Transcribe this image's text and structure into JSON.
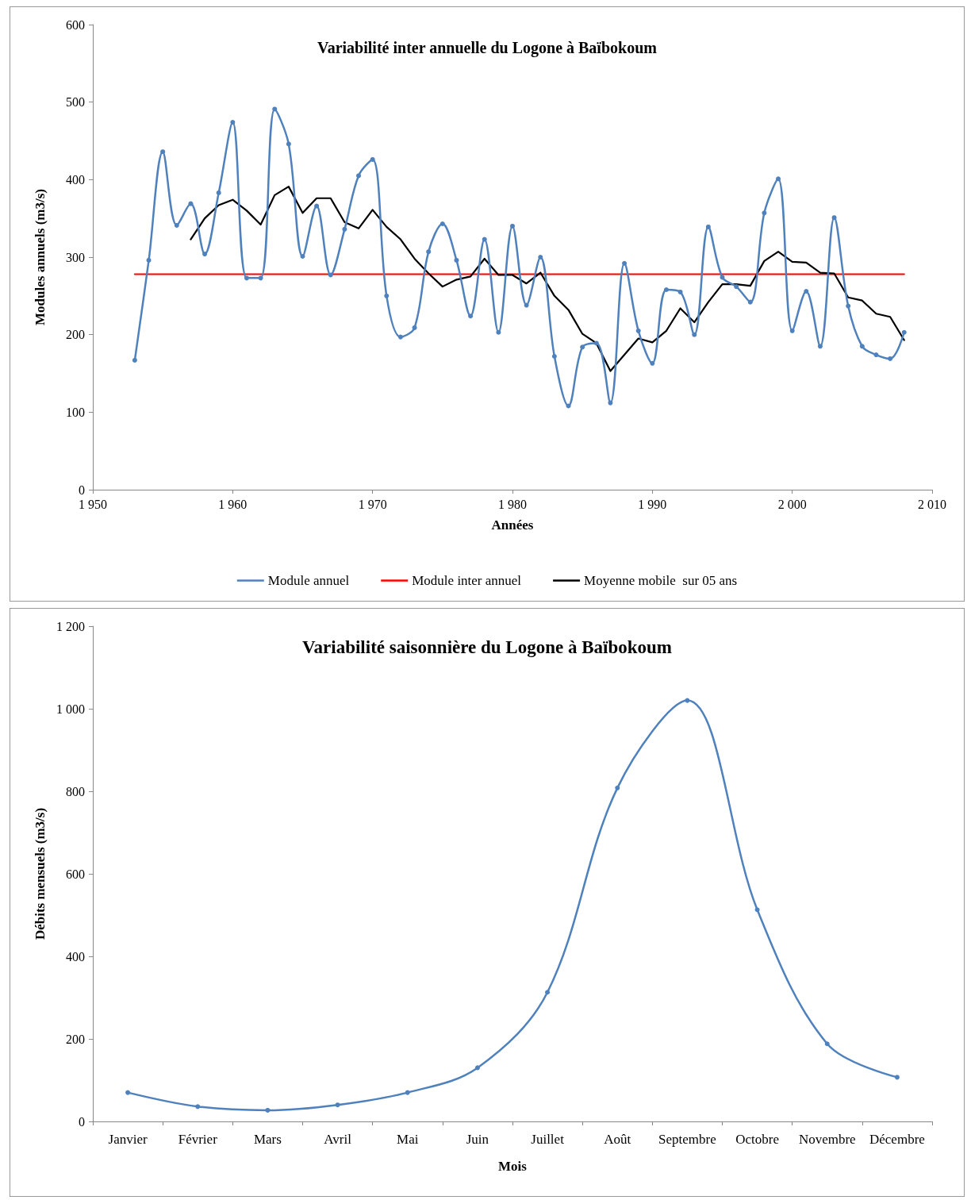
{
  "chart_data": [
    {
      "type": "line",
      "title": "Variabilité inter annuelle du Logone à Baïbokoum",
      "xlabel": "Années",
      "ylabel": "Modules annuels (m3/s)",
      "xlim": [
        1950,
        2010
      ],
      "xticks": [
        {
          "value": 1950,
          "label": "1 950"
        },
        {
          "value": 1960,
          "label": "1 960"
        },
        {
          "value": 1970,
          "label": "1 970"
        },
        {
          "value": 1980,
          "label": "1 980"
        },
        {
          "value": 1990,
          "label": "1 990"
        },
        {
          "value": 2000,
          "label": "2 000"
        },
        {
          "value": 2010,
          "label": "2 010"
        }
      ],
      "ylim": [
        0,
        600
      ],
      "yticks": [
        0,
        100,
        200,
        300,
        400,
        500,
        600
      ],
      "grid": false,
      "legend": "bottom",
      "series": [
        {
          "name": "Module annuel",
          "color": "#4f81bd",
          "marker": "circle",
          "x": [
            1953,
            1954,
            1955,
            1956,
            1957,
            1958,
            1959,
            1960,
            1961,
            1962,
            1963,
            1964,
            1965,
            1966,
            1967,
            1968,
            1969,
            1970,
            1971,
            1972,
            1973,
            1974,
            1975,
            1976,
            1977,
            1978,
            1979,
            1980,
            1981,
            1982,
            1983,
            1984,
            1985,
            1986,
            1987,
            1988,
            1989,
            1990,
            1991,
            1992,
            1993,
            1994,
            1995,
            1996,
            1997,
            1998,
            1999,
            2000,
            2001,
            2002,
            2003,
            2004,
            2005,
            2006,
            2007,
            2008
          ],
          "values": [
            167,
            296,
            436,
            341,
            369,
            304,
            383,
            474,
            273,
            273,
            491,
            446,
            301,
            366,
            277,
            336,
            405,
            426,
            250,
            197,
            209,
            307,
            343,
            296,
            224,
            323,
            203,
            340,
            238,
            300,
            172,
            108,
            184,
            189,
            112,
            292,
            205,
            163,
            258,
            255,
            200,
            339,
            274,
            262,
            242,
            357,
            401,
            205,
            256,
            185,
            351,
            237,
            185,
            174,
            169,
            203
          ]
        },
        {
          "name": "Module inter annuel",
          "color": "#ff0000",
          "marker": "none",
          "x": [
            1953,
            2008
          ],
          "values": [
            278,
            278
          ]
        },
        {
          "name": "Moyenne mobile  sur 05 ans",
          "color": "#000000",
          "marker": "none",
          "x": [
            1957,
            1958,
            1959,
            1960,
            1961,
            1962,
            1963,
            1964,
            1965,
            1966,
            1967,
            1968,
            1969,
            1970,
            1971,
            1972,
            1973,
            1974,
            1975,
            1976,
            1977,
            1978,
            1979,
            1980,
            1981,
            1982,
            1983,
            1984,
            1985,
            1986,
            1987,
            1988,
            1989,
            1990,
            1991,
            1992,
            1993,
            1994,
            1995,
            1996,
            1997,
            1998,
            1999,
            2000,
            2001,
            2002,
            2003,
            2004,
            2005,
            2006,
            2007,
            2008
          ],
          "values": [
            323,
            350,
            367,
            374,
            360,
            342,
            380,
            391,
            357,
            376,
            376,
            345,
            337,
            361,
            339,
            323,
            298,
            279,
            262,
            271,
            275,
            298,
            277,
            277,
            266,
            280,
            250,
            232,
            201,
            189,
            153,
            174,
            195,
            190,
            205,
            234,
            216,
            242,
            265,
            265,
            263,
            295,
            307,
            294,
            293,
            280,
            279,
            248,
            244,
            227,
            223,
            193
          ]
        }
      ]
    },
    {
      "type": "line",
      "title": "Variabilité saisonnière du Logone à Baïbokoum",
      "xlabel": "Mois",
      "ylabel": "Débits mensuels (m3/s)",
      "categories": [
        "Janvier",
        "Février",
        "Mars",
        "Avril",
        "Mai",
        "Juin",
        "Juillet",
        "Août",
        "Septembre",
        "Octobre",
        "Novembre",
        "Décembre"
      ],
      "ylim": [
        0,
        1200
      ],
      "yticks": [
        0,
        200,
        400,
        600,
        800,
        {
          "value": 1000,
          "label": "1 000"
        },
        {
          "value": 1200,
          "label": "1 200"
        }
      ],
      "grid": false,
      "legend": false,
      "marker": "circle",
      "series": [
        {
          "color": "#4f81bd",
          "values": [
            70,
            36,
            27,
            40,
            70,
            130,
            313,
            808,
            1020,
            513,
            188,
            107
          ]
        }
      ]
    }
  ]
}
